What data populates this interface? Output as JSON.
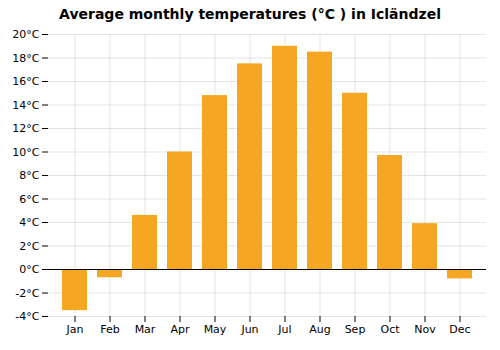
{
  "chart_data": {
    "type": "bar",
    "title": "Average monthly temperatures (°C ) in Icländzel",
    "categories": [
      "Jan",
      "Feb",
      "Mar",
      "Apr",
      "May",
      "Jun",
      "Jul",
      "Aug",
      "Sep",
      "Oct",
      "Nov",
      "Dec"
    ],
    "values": [
      -3.5,
      -0.7,
      4.6,
      10.0,
      14.8,
      17.5,
      19.0,
      18.5,
      15.0,
      9.7,
      3.9,
      -0.8
    ],
    "color": "#F5A623",
    "ylim": [
      -4,
      20
    ],
    "yticks": [
      {
        "value": -4,
        "label": "-4°C"
      },
      {
        "value": -2,
        "label": "-2°C"
      },
      {
        "value": 0,
        "label": "0°C"
      },
      {
        "value": 2,
        "label": "2°C"
      },
      {
        "value": 4,
        "label": "4°C"
      },
      {
        "value": 6,
        "label": "6°C"
      },
      {
        "value": 8,
        "label": "8°C"
      },
      {
        "value": 10,
        "label": "10°C"
      },
      {
        "value": 12,
        "label": "12°C"
      },
      {
        "value": 14,
        "label": "14°C"
      },
      {
        "value": 16,
        "label": "16°C"
      },
      {
        "value": 18,
        "label": "18°C"
      },
      {
        "value": 20,
        "label": "20°C"
      }
    ],
    "grid": true
  }
}
